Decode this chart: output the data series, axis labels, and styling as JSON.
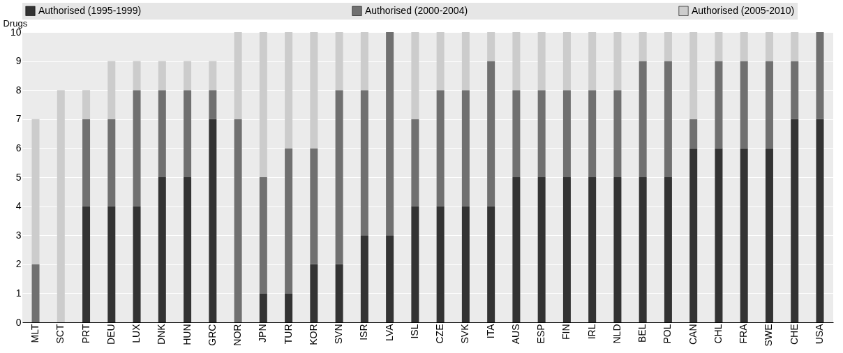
{
  "chart_data": {
    "type": "bar",
    "stacked": true,
    "ylabel": "Drugs",
    "categories": [
      "MLT",
      "SCT",
      "PRT",
      "DEU",
      "LUX",
      "DNK",
      "HUN",
      "GRC",
      "NOR",
      "JPN",
      "TUR",
      "KOR",
      "SVN",
      "ISR",
      "LVA",
      "ISL",
      "CZE",
      "SVK",
      "ITA",
      "AUS",
      "ESP",
      "FIN",
      "IRL",
      "NLD",
      "BEL",
      "POL",
      "CAN",
      "CHL",
      "FRA",
      "SWE",
      "CHE",
      "USA"
    ],
    "series": [
      {
        "name": "Authorised (1995-1999)",
        "color": "#333333",
        "values": [
          0,
          0,
          4,
          4,
          4,
          5,
          5,
          7,
          0,
          1,
          1,
          2,
          2,
          3,
          3,
          4,
          4,
          4,
          4,
          5,
          5,
          5,
          5,
          5,
          5,
          5,
          6,
          6,
          6,
          6,
          7,
          7
        ]
      },
      {
        "name": "Authorised (2000-2004)",
        "color": "#707070",
        "values": [
          2,
          0,
          3,
          3,
          4,
          3,
          3,
          1,
          7,
          4,
          5,
          4,
          6,
          5,
          7,
          3,
          4,
          4,
          5,
          3,
          3,
          3,
          3,
          3,
          4,
          4,
          1,
          3,
          3,
          3,
          2,
          3
        ]
      },
      {
        "name": "Authorised (2005-2010)",
        "color": "#cccccc",
        "values": [
          5,
          8,
          1,
          2,
          1,
          1,
          1,
          1,
          3,
          5,
          4,
          4,
          2,
          2,
          0,
          3,
          2,
          2,
          1,
          2,
          2,
          2,
          2,
          2,
          1,
          1,
          3,
          1,
          1,
          1,
          1,
          0
        ]
      }
    ],
    "ylim": [
      0,
      10
    ],
    "yticks": [
      0,
      1,
      2,
      3,
      4,
      5,
      6,
      7,
      8,
      9,
      10
    ],
    "grid": "y",
    "legend": "top"
  }
}
